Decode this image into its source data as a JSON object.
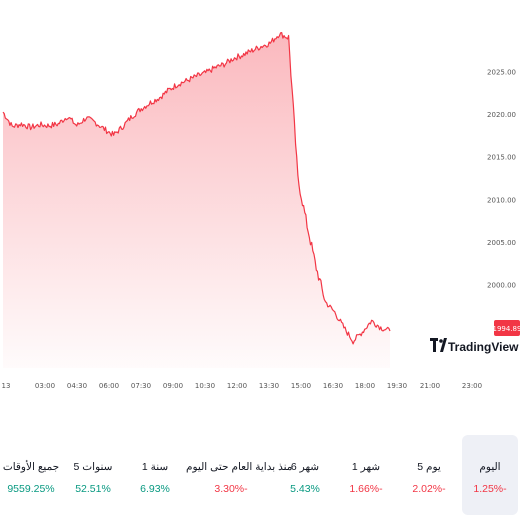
{
  "chart_data": {
    "type": "area",
    "y_ticks": [
      "2025.00",
      "2020.00",
      "2015.00",
      "2010.00",
      "2005.00",
      "2000.00"
    ],
    "y_tick_values": [
      2025,
      2020,
      2015,
      2010,
      2005,
      2000
    ],
    "x_ticks": [
      "13",
      "03:00",
      "04:30",
      "06:00",
      "07:30",
      "09:00",
      "10:30",
      "12:00",
      "13:30",
      "15:00",
      "16:30",
      "18:00",
      "19:30",
      "21:00",
      "23:00"
    ],
    "current_price_label": "1994.89",
    "current_price": 1994.89,
    "series": [
      {
        "values": [
          2020.3,
          2018.6,
          2018.9,
          2018.5,
          2018.8,
          2018.7,
          2018.9,
          2019.8,
          2018.7,
          2019.6,
          2019.1,
          2018.3,
          2017.6,
          2018.6,
          2019.8,
          2020.7,
          2021.4,
          2022.0,
          2022.9,
          2023.6,
          2024.0,
          2024.5,
          2024.9,
          2025.5,
          2025.9,
          2026.6,
          2027.0,
          2027.5,
          2028.0,
          2028.4,
          2029.5,
          2029.0,
          2012.5,
          2007.0,
          2002.0,
          1998.0,
          1996.8,
          1995.0,
          1993.4,
          1994.5,
          1995.8,
          1995.0,
          1994.6
        ]
      }
    ],
    "line_color": "#f23645"
  },
  "logo": {
    "text": "TradingView",
    "icon": "tradingview-logo-icon"
  },
  "periods": [
    {
      "label": "جميع الأوقات",
      "value": "9559.25%",
      "trend": "positive"
    },
    {
      "label": "5 سنوات",
      "value": "52.51%",
      "trend": "positive"
    },
    {
      "label": "1 سنة",
      "value": "6.93%",
      "trend": "positive"
    },
    {
      "label": "منذ بداية العام حتى اليوم",
      "value": "3.30%-",
      "trend": "negative"
    },
    {
      "label": "6 شهر",
      "value": "5.43%",
      "trend": "positive"
    },
    {
      "label": "1 شهر",
      "value": "1.66%-",
      "trend": "negative"
    },
    {
      "label": "5 يوم",
      "value": "2.02%-",
      "trend": "negative"
    },
    {
      "label": "اليوم",
      "value": "1.25%-",
      "trend": "negative",
      "active": true
    }
  ]
}
